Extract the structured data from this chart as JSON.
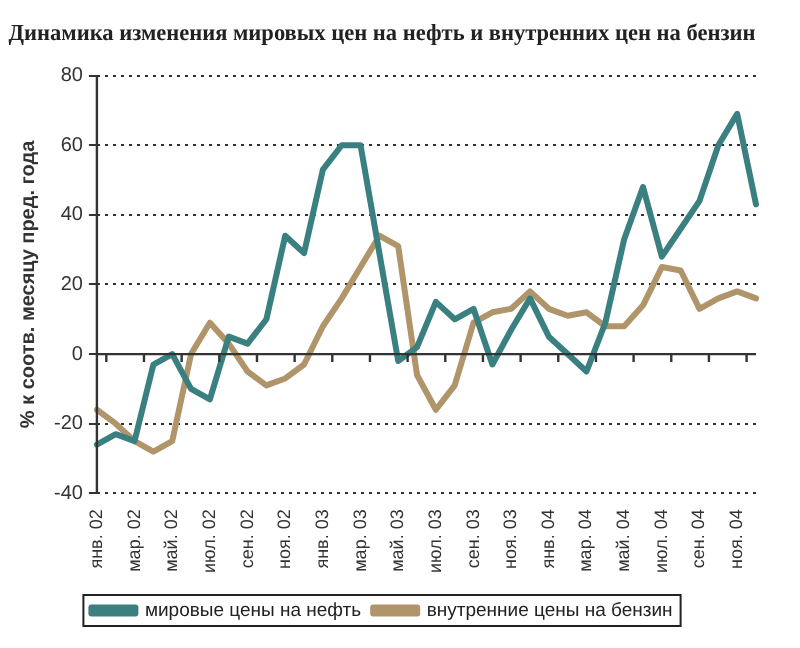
{
  "chart_data": {
    "type": "line",
    "title": "Динамика изменения мировых цен на нефть и внутренних цен на бензин",
    "ylabel": "% к соотв. месяцу пред. года",
    "categories": [
      "янв. 02",
      null,
      "мар. 02",
      null,
      "май. 02",
      null,
      "июл. 02",
      null,
      "сен. 02",
      null,
      "ноя. 02",
      null,
      "янв. 03",
      null,
      "мар. 03",
      null,
      "май. 03",
      null,
      "июл. 03",
      null,
      "сен. 03",
      null,
      "ноя. 03",
      null,
      "янв. 04",
      null,
      "мар. 04",
      null,
      "май. 04",
      null,
      "июл. 04",
      null,
      "сен. 04",
      null,
      "ноя. 04",
      null
    ],
    "series": [
      {
        "name": "мировые цены на нефть",
        "color": "#3a8080",
        "values": [
          -26,
          -23,
          -25,
          -3,
          0,
          -10,
          -13,
          5,
          3,
          10,
          34,
          29,
          53,
          60,
          60,
          29,
          -2,
          2,
          15,
          10,
          13,
          -3,
          7,
          16,
          5,
          0,
          -5,
          9,
          33,
          48,
          28,
          36,
          44,
          60,
          69,
          43
        ]
      },
      {
        "name": "внутренние цены на бензин",
        "color": "#b0946a",
        "values": [
          -16,
          -20,
          -25,
          -28,
          -25,
          0,
          9,
          3,
          -5,
          -9,
          -7,
          -3,
          8,
          16,
          25,
          34,
          31,
          -6,
          -16,
          -9,
          9,
          12,
          13,
          18,
          13,
          11,
          12,
          8,
          8,
          14,
          25,
          24,
          13,
          16,
          18,
          16
        ]
      }
    ],
    "ylim": [
      -40,
      80
    ],
    "yticks": [
      -40,
      -20,
      0,
      20,
      40,
      60,
      80
    ],
    "grid": "y",
    "legend": "bottom",
    "marker": "none",
    "line_style": "solid"
  }
}
